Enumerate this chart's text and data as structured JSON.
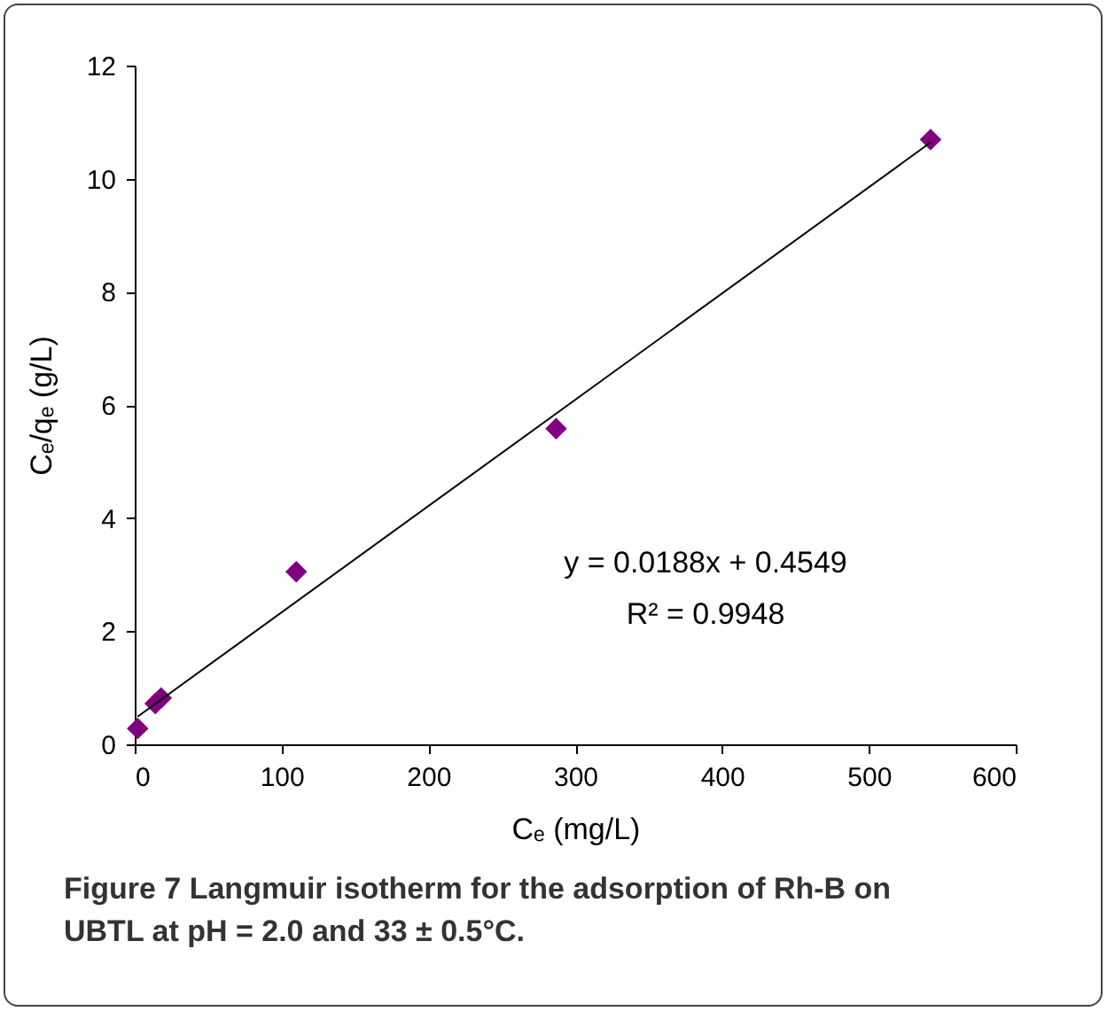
{
  "chart_data": {
    "type": "scatter",
    "title": "Figure 7 Langmuir isotherm for the adsorption of Rh-B on UBTL at pH = 2.0 and 33 ± 0.5°C.",
    "xlabel": "Cₑ (mg/L)",
    "ylabel": "Cₑ/qₑ (g/L)",
    "annotations": [
      "y = 0.0188x + 0.4549",
      "R² = 0.9948"
    ],
    "series": [
      {
        "color": "#800080",
        "marker": "diamond",
        "x": [
          2,
          14,
          18,
          110,
          287,
          542
        ],
        "values": [
          0.28,
          0.72,
          0.82,
          3.05,
          5.58,
          10.69
        ]
      },
      {
        "type": "line",
        "color": "#000000",
        "marker": "none",
        "x": [
          2,
          542
        ],
        "values": [
          0.49,
          10.64
        ]
      }
    ],
    "xlim": [
      0,
      600
    ],
    "xticks": [
      0,
      100,
      200,
      300,
      400,
      500,
      600
    ],
    "ylim": [
      0,
      12
    ],
    "yticks": [
      0,
      2,
      4,
      6,
      8,
      10,
      12
    ],
    "grid": false
  }
}
